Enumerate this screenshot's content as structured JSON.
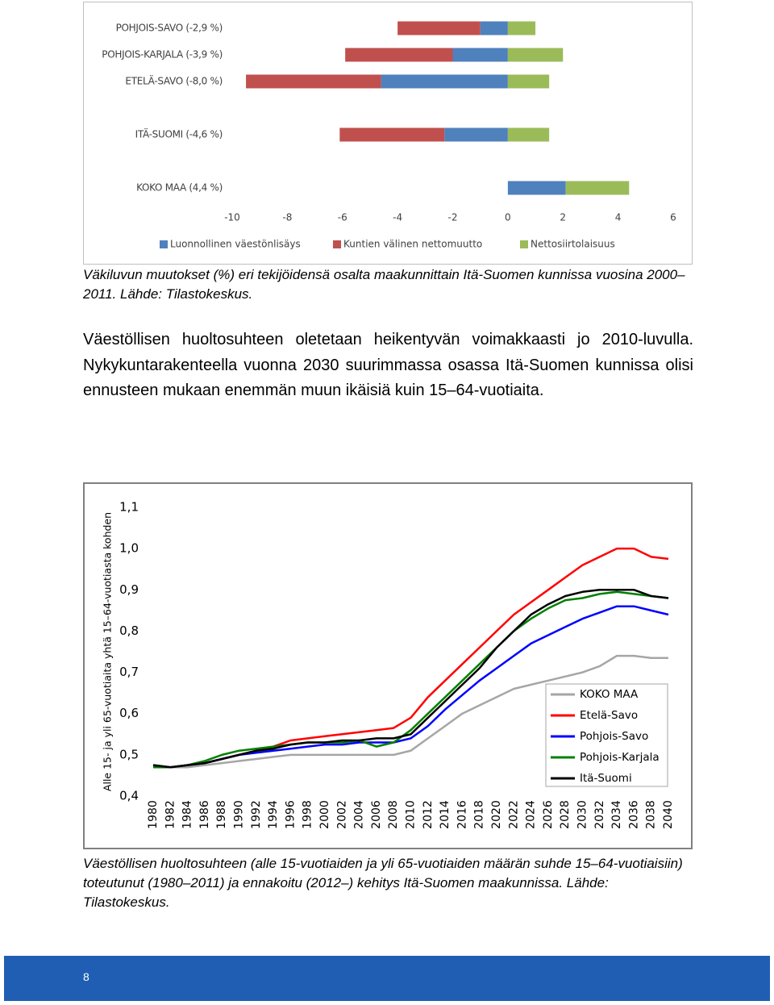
{
  "chart_data": [
    {
      "type": "hbar",
      "categories": [
        "POHJOIS-SAVO (-2,9 %)",
        "POHJOIS-KARJALA (-3,9 %)",
        "ETELÄ-SAVO (-8,0 %)",
        null,
        "ITÄ-SUOMI (-4,6 %)",
        null,
        "KOKO MAA (4,4 %)"
      ],
      "series": [
        {
          "name": "Luonnollinen väestönlisäys",
          "color": "#4f81bd",
          "values": [
            -1.0,
            -2.0,
            -4.6,
            null,
            -2.3,
            null,
            2.1
          ]
        },
        {
          "name": "Kuntien välinen nettomuutto",
          "color": "#c0504d",
          "values": [
            -3.0,
            -3.9,
            -4.9,
            null,
            -3.8,
            null,
            0
          ]
        },
        {
          "name": "Nettosiirtolaisuus",
          "color": "#9bbb59",
          "values": [
            1.0,
            2.0,
            1.5,
            null,
            1.5,
            null,
            2.3
          ]
        }
      ],
      "xlim": [
        -10,
        6
      ],
      "xticks": [
        -10,
        -8,
        -6,
        -4,
        -2,
        0,
        2,
        4,
        6
      ],
      "legend": "bottom"
    },
    {
      "type": "line",
      "y_label": "Alle 15- ja yli 65-vuotiaita yhtä 15–64-vuotiasta kohden",
      "x": [
        1980,
        1982,
        1984,
        1986,
        1988,
        1990,
        1992,
        1994,
        1996,
        1998,
        2000,
        2002,
        2004,
        2006,
        2008,
        2010,
        2012,
        2014,
        2016,
        2018,
        2020,
        2022,
        2024,
        2026,
        2028,
        2030,
        2032,
        2034,
        2036,
        2038,
        2040
      ],
      "series": [
        {
          "name": "KOKO MAA",
          "color": "#a6a6a6",
          "values": [
            0.475,
            0.47,
            0.47,
            0.475,
            0.48,
            0.485,
            0.49,
            0.495,
            0.5,
            0.5,
            0.5,
            0.5,
            0.5,
            0.5,
            0.5,
            0.51,
            0.54,
            0.57,
            0.6,
            0.62,
            0.64,
            0.66,
            0.67,
            0.68,
            0.69,
            0.7,
            0.715,
            0.74,
            0.74,
            0.735,
            0.735
          ]
        },
        {
          "name": "Etelä-Savo",
          "color": "#ff0000",
          "values": [
            0.47,
            0.47,
            0.475,
            0.48,
            0.49,
            0.5,
            0.51,
            0.52,
            0.535,
            0.54,
            0.545,
            0.55,
            0.555,
            0.56,
            0.565,
            0.59,
            0.64,
            0.68,
            0.72,
            0.76,
            0.8,
            0.84,
            0.87,
            0.9,
            0.93,
            0.96,
            0.98,
            1.0,
            1.0,
            0.98,
            0.975
          ]
        },
        {
          "name": "Pohjois-Savo",
          "color": "#0000ff",
          "values": [
            0.475,
            0.47,
            0.475,
            0.48,
            0.49,
            0.5,
            0.505,
            0.51,
            0.515,
            0.52,
            0.525,
            0.525,
            0.53,
            0.53,
            0.53,
            0.54,
            0.57,
            0.61,
            0.645,
            0.68,
            0.71,
            0.74,
            0.77,
            0.79,
            0.81,
            0.83,
            0.845,
            0.86,
            0.86,
            0.85,
            0.84
          ]
        },
        {
          "name": "Pohjois-Karjala",
          "color": "#008000",
          "values": [
            0.47,
            0.47,
            0.475,
            0.485,
            0.5,
            0.51,
            0.515,
            0.52,
            0.525,
            0.53,
            0.53,
            0.53,
            0.535,
            0.52,
            0.53,
            0.56,
            0.6,
            0.64,
            0.68,
            0.72,
            0.76,
            0.8,
            0.83,
            0.855,
            0.875,
            0.88,
            0.89,
            0.895,
            0.89,
            0.885,
            0.88
          ]
        },
        {
          "name": "Itä-Suomi",
          "color": "#000000",
          "values": [
            0.475,
            0.47,
            0.475,
            0.48,
            0.49,
            0.5,
            0.51,
            0.515,
            0.525,
            0.53,
            0.53,
            0.535,
            0.535,
            0.54,
            0.54,
            0.55,
            0.59,
            0.63,
            0.67,
            0.71,
            0.76,
            0.8,
            0.84,
            0.865,
            0.885,
            0.895,
            0.9,
            0.9,
            0.9,
            0.885,
            0.88
          ]
        }
      ],
      "xlim": [
        1980,
        2040
      ],
      "xticks": [
        1980,
        1982,
        1984,
        1986,
        1988,
        1990,
        1992,
        1994,
        1996,
        1998,
        2000,
        2002,
        2004,
        2006,
        2008,
        2010,
        2012,
        2014,
        2016,
        2018,
        2020,
        2022,
        2024,
        2026,
        2028,
        2030,
        2032,
        2034,
        2036,
        2038,
        2040
      ],
      "ylim": [
        0.4,
        1.1
      ],
      "yticks": [
        {
          "value": 0.4,
          "label": "0,4"
        },
        {
          "value": 0.5,
          "label": "0,5"
        },
        {
          "value": 0.6,
          "label": "0,6"
        },
        {
          "value": 0.7,
          "label": "0,7"
        },
        {
          "value": 0.8,
          "label": "0,8"
        },
        {
          "value": 0.9,
          "label": "0,9"
        },
        {
          "value": 1.0,
          "label": "1,0"
        },
        {
          "value": 1.1,
          "label": "1,1"
        }
      ],
      "legend": "lower right"
    }
  ],
  "document": {
    "caption_1": "Väkiluvun muutokset (%) eri tekijöidensä osalta maakunnittain Itä-Suomen kunnissa vuosina 2000–2011. Lähde: Tilastokeskus.",
    "paragraph": "Väestöllisen huoltosuhteen oletetaan heikentyvän voimakkaasti jo 2010-luvulla. Nykykuntarakenteella vuonna 2030 suurimmassa osassa Itä-Suomen kunnissa olisi ennusteen mukaan enemmän muun ikäisiä kuin 15–64-vuotiaita.",
    "caption_2": "Väestöllisen huoltosuhteen (alle 15-vuotiaiden ja yli 65-vuotiaiden määrän suhde 15–64-vuotiaisiin) toteutunut (1980–2011) ja ennakoitu (2012–) kehitys Itä-Suomen maakunnissa. Lähde: Tilastokeskus.",
    "page_number": "8"
  }
}
